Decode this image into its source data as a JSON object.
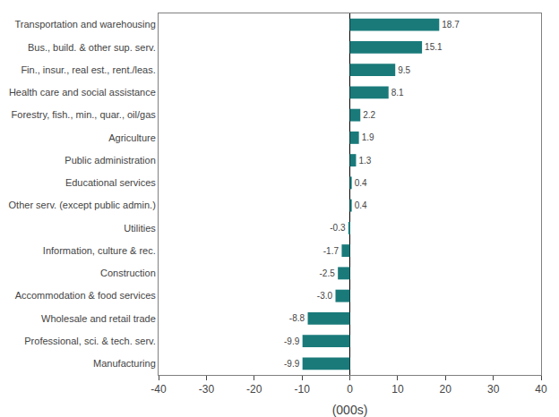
{
  "chart_data": {
    "type": "bar",
    "orientation": "horizontal",
    "categories": [
      "Manufacturing",
      "Professional, sci. & tech. serv.",
      "Wholesale and retail trade",
      "Accommodation & food services",
      "Construction",
      "Information, culture & rec.",
      "Utilities",
      "Other serv. (except public admin.)",
      "Educational services",
      "Public administration",
      "Agriculture",
      "Forestry, fish., min., quar., oil/gas",
      "Health care and social assistance",
      "Fin., insur., real est., rent./leas.",
      "Bus., build. & other sup. serv.",
      "Transportation and warehousing"
    ],
    "values": [
      -9.9,
      -9.9,
      -8.8,
      -3.0,
      -2.5,
      -1.7,
      -0.3,
      0.4,
      0.4,
      1.3,
      1.9,
      2.2,
      8.1,
      9.5,
      15.1,
      18.7
    ],
    "value_labels": [
      "-9.9",
      "-9.9",
      "-8.8",
      "-3.0",
      "-2.5",
      "-1.7",
      "-0.3",
      "0.4",
      "0.4",
      "1.3",
      "1.9",
      "2.2",
      "8.1",
      "9.5",
      "15.1",
      "18.7"
    ],
    "data_labels": true,
    "color": "#1a7a7a",
    "xlabel": "(000s)",
    "xlim": [
      -40,
      40
    ],
    "xticks": [
      -40,
      -30,
      -20,
      -10,
      0,
      10,
      20,
      30,
      40
    ],
    "grid": false
  }
}
